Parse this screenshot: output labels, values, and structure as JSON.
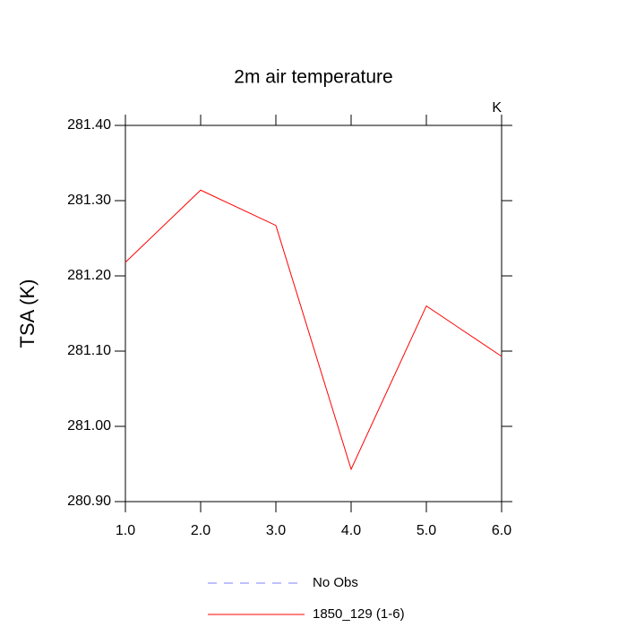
{
  "chart_data": {
    "type": "line",
    "title": "2m air temperature",
    "ylabel": "TSA  (K)",
    "units": "K",
    "x": [
      1,
      2,
      3,
      4,
      5,
      6
    ],
    "series": [
      {
        "name": "1850_129 (1-6)",
        "color": "#ff0000",
        "values": [
          281.218,
          281.314,
          281.267,
          280.943,
          281.16,
          281.093
        ]
      }
    ],
    "legend": [
      {
        "name": "No Obs",
        "color": "#7f7fff",
        "style": "dashed"
      }
    ],
    "xlim": [
      1,
      6
    ],
    "xticks": [
      {
        "value": 1,
        "label": "1.0"
      },
      {
        "value": 2,
        "label": "2.0"
      },
      {
        "value": 3,
        "label": "3.0"
      },
      {
        "value": 4,
        "label": "4.0"
      },
      {
        "value": 5,
        "label": "5.0"
      },
      {
        "value": 6,
        "label": "6.0"
      }
    ],
    "ylim": [
      280.9,
      281.4
    ],
    "yticks": [
      {
        "value": 280.9,
        "label": "280.90"
      },
      {
        "value": 281.0,
        "label": "281.00"
      },
      {
        "value": 281.1,
        "label": "281.10"
      },
      {
        "value": 281.2,
        "label": "281.20"
      },
      {
        "value": 281.3,
        "label": "281.30"
      },
      {
        "value": 281.4,
        "label": "281.40"
      }
    ],
    "grid": false
  }
}
